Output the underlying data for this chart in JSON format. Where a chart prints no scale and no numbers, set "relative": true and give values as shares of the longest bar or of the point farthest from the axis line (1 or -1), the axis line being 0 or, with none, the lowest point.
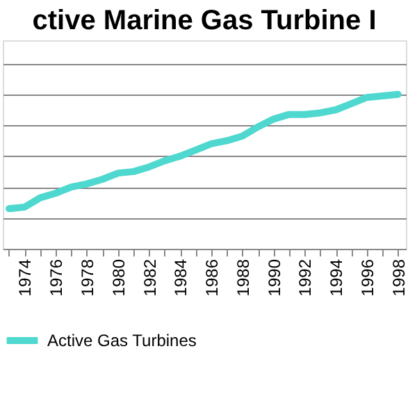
{
  "chart_data": {
    "type": "line",
    "title": "ctive Marine Gas Turbine I",
    "categories": [
      null,
      "1974",
      null,
      "1976",
      null,
      "1978",
      null,
      "1980",
      null,
      "1982",
      null,
      "1984",
      null,
      "1986",
      null,
      "1988",
      null,
      "1990",
      null,
      "1992",
      null,
      "1994",
      null,
      "1996",
      null,
      "1998"
    ],
    "relative": true,
    "grid": "y",
    "legend": "bottom",
    "marker": "none",
    "line_style": "solid",
    "series": [
      {
        "name": "Active Gas Turbines",
        "color": "#4fd8cf",
        "values": [
          0.26,
          0.27,
          0.33,
          0.36,
          0.4,
          0.42,
          0.45,
          0.49,
          0.5,
          0.53,
          0.57,
          0.6,
          0.64,
          0.68,
          0.7,
          0.73,
          0.79,
          0.84,
          0.87,
          0.87,
          0.88,
          0.9,
          0.94,
          0.98,
          0.99,
          1.0
        ]
      }
    ]
  }
}
